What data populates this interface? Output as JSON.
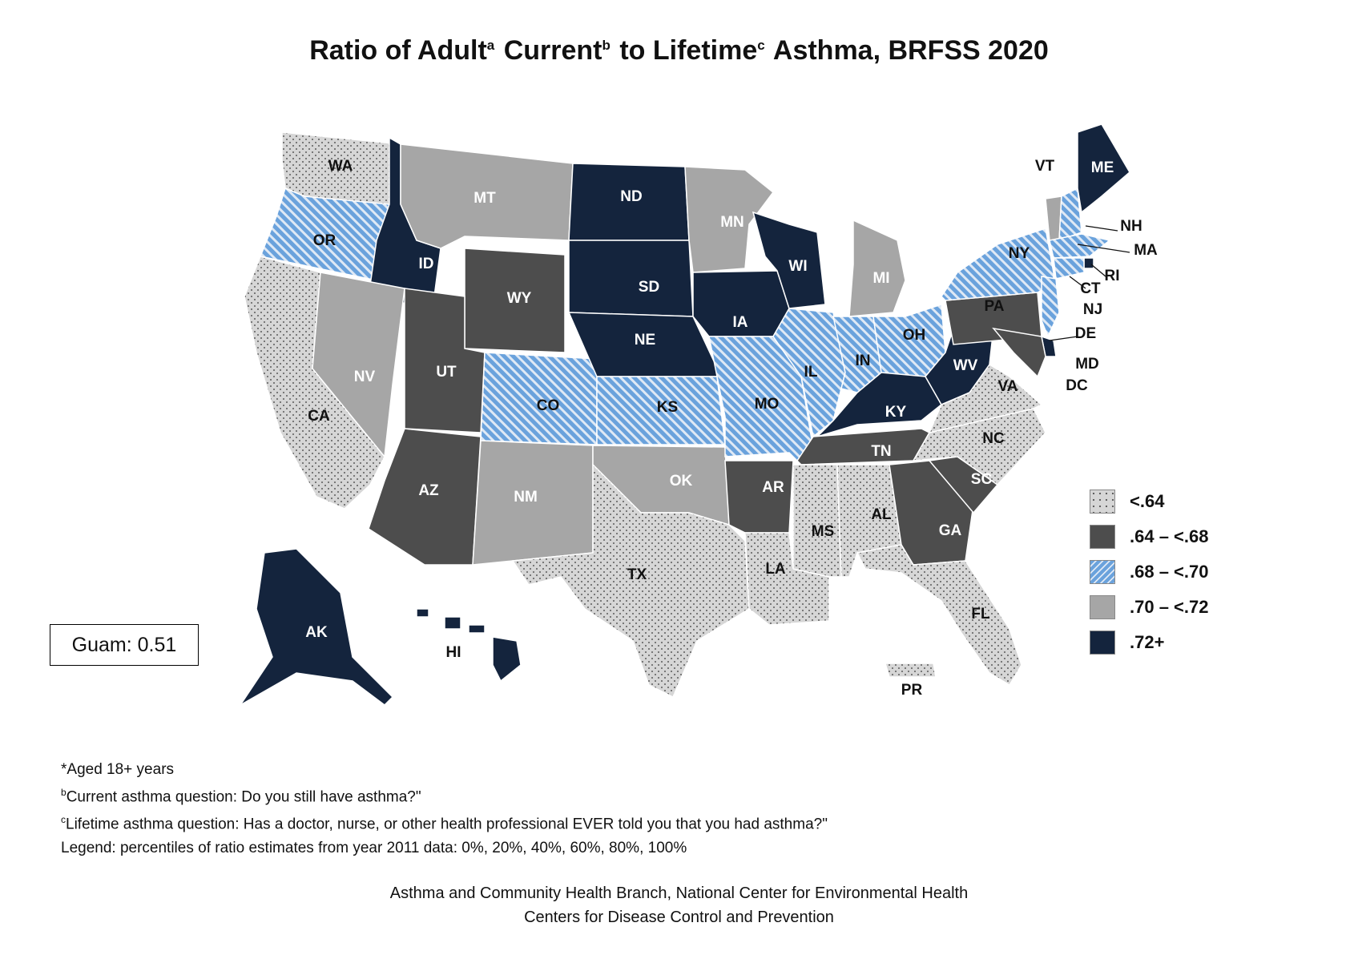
{
  "title": {
    "adult": "Ratio of Adult",
    "sup_a": "a",
    "current": " Current",
    "sup_b": "b",
    "lifetime": " to Lifetime",
    "sup_c": "c",
    "rest": " Asthma, BRFSS 2020"
  },
  "legend": [
    {
      "label": "<.64",
      "class": "c1",
      "color": "#d6d6d6",
      "pattern": "dots"
    },
    {
      "label": ".64 – <.68",
      "class": "c2",
      "color": "#4d4d4d",
      "pattern": "solid"
    },
    {
      "label": ".68 – <.70",
      "class": "c3",
      "color": "#7fb2e5",
      "pattern": "stripes"
    },
    {
      "label": ".70 – <.72",
      "class": "c4",
      "color": "#a6a6a6",
      "pattern": "solid"
    },
    {
      "label": ".72+",
      "class": "c5",
      "color": "#14243d",
      "pattern": "solid"
    }
  ],
  "states": {
    "WA": "c1",
    "OR": "c3",
    "CA": "c1",
    "ID": "c5",
    "NV": "c4",
    "MT": "c4",
    "WY": "c2",
    "UT": "c2",
    "AZ": "c2",
    "CO": "c3",
    "NM": "c4",
    "ND": "c5",
    "SD": "c5",
    "NE": "c5",
    "KS": "c3",
    "OK": "c4",
    "TX": "c1",
    "MN": "c4",
    "IA": "c5",
    "MO": "c3",
    "AR": "c2",
    "LA": "c1",
    "WI": "c5",
    "IL": "c3",
    "MI": "c4",
    "IN": "c3",
    "OH": "c3",
    "KY": "c5",
    "TN": "c2",
    "MS": "c1",
    "AL": "c1",
    "GA": "c2",
    "FL": "c1",
    "SC": "c2",
    "NC": "c1",
    "VA": "c1",
    "WV": "c5",
    "PA": "c2",
    "NY": "c3",
    "VT": "c4",
    "ME": "c5",
    "NH": "c3",
    "MA": "c3",
    "RI": "c5",
    "CT": "c3",
    "NJ": "c3",
    "DE": "c5",
    "MD": "c2",
    "DC": "c2",
    "AK": "c5",
    "HI": "c5",
    "PR": "c1"
  },
  "guam": "Guam: 0.51",
  "notes": {
    "n1": "*Aged 18+ years",
    "n2_sup": "b",
    "n2": "Current asthma question: Do you still have asthma?\"",
    "n3_sup": "c",
    "n3": "Lifetime asthma question: Has a doctor, nurse, or other health professional EVER told you that you had asthma?\"",
    "n4": "Legend: percentiles of ratio estimates from year 2011 data: 0%, 20%, 40%, 60%, 80%, 100%"
  },
  "credit": {
    "line1": "Asthma and Community Health Branch, National Center for Environmental Health",
    "line2": "Centers for Disease Control and Prevention"
  }
}
